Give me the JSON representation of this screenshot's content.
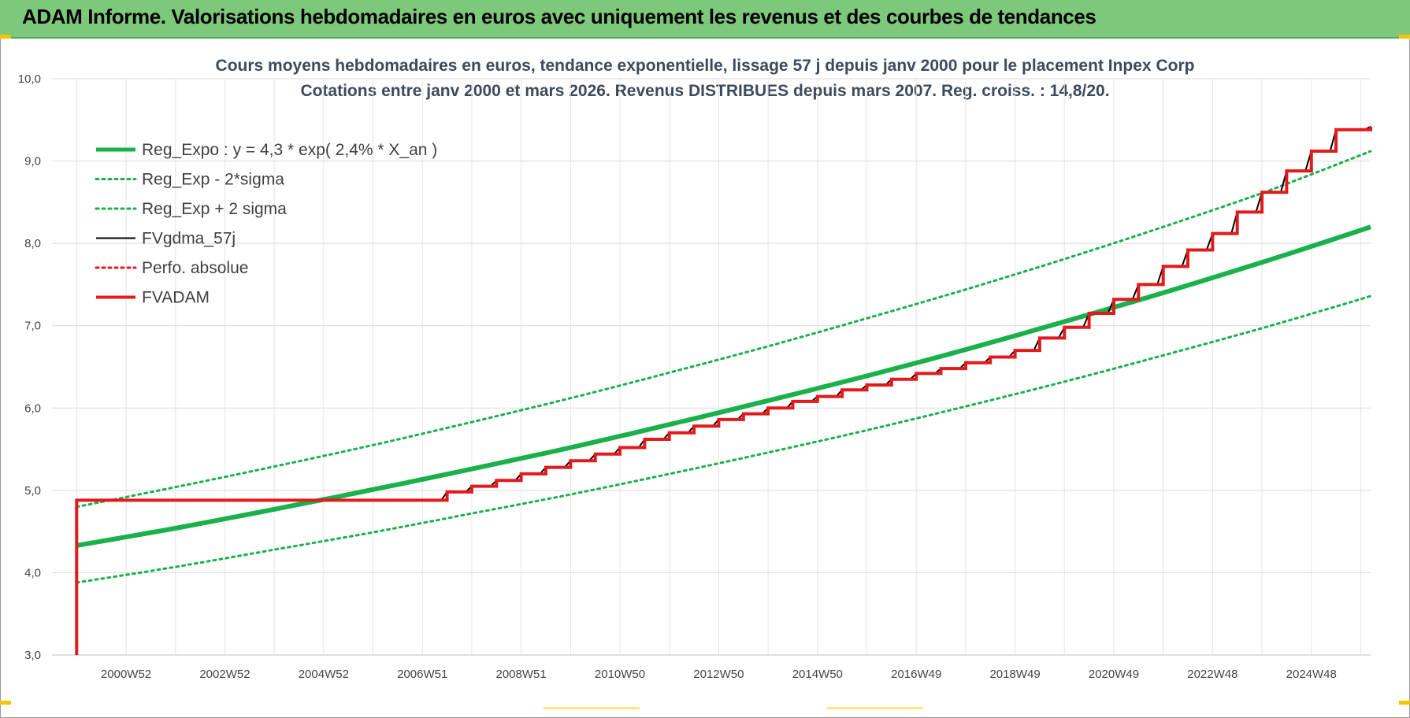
{
  "header": {
    "title": "ADAM Informe. Valorisations hebdomadaires en euros avec uniquement les revenus et des courbes de tendances"
  },
  "chart_data": {
    "type": "line",
    "title": "Cours moyens hebdomadaires en euros, tendance exponentielle, lissage 57 j depuis janv 2000  pour le placement Inpex Corp",
    "subtitle": "Cotations entre janv 2000 et mars 2026. Revenus DISTRIBUES depuis mars 2007. Reg. croiss. : 14,8/20.",
    "xlabel": "",
    "ylabel": "",
    "ylim": [
      3.0,
      10.0
    ],
    "xlim": [
      1999.5,
      2026.2
    ],
    "y_ticks": [
      "3,0",
      "4,0",
      "5,0",
      "6,0",
      "7,0",
      "8,0",
      "9,0",
      "10,0"
    ],
    "x_tick_labels": [
      "2000W52",
      "2002W52",
      "2004W52",
      "2006W51",
      "2008W51",
      "2010W50",
      "2012W50",
      "2014W50",
      "2016W49",
      "2018W49",
      "2020W49",
      "2022W48",
      "2024W48"
    ],
    "x_tick_years": [
      2001,
      2003,
      2005,
      2007,
      2009,
      2011,
      2013,
      2015,
      2017,
      2019,
      2021,
      2023,
      2025
    ],
    "grid": true,
    "legend_position": "top-left",
    "series": [
      {
        "name": "Reg_Expo : y = 4,3 * exp( 2,4% *  X_an )",
        "color": "#1ab04b",
        "style": "solid-thick",
        "x": [
          2000.0,
          2002.0,
          2004.0,
          2006.0,
          2008.0,
          2010.0,
          2012.0,
          2014.0,
          2016.0,
          2018.0,
          2020.0,
          2022.0,
          2024.0,
          2026.2
        ],
        "y": [
          4.33,
          4.54,
          4.77,
          5.01,
          5.26,
          5.52,
          5.8,
          6.09,
          6.39,
          6.71,
          7.05,
          7.4,
          7.77,
          8.2
        ]
      },
      {
        "name": "Reg_Exp - 2*sigma",
        "color": "#1ab04b",
        "style": "dotted",
        "x": [
          2000.0,
          2002.0,
          2004.0,
          2006.0,
          2008.0,
          2010.0,
          2012.0,
          2014.0,
          2016.0,
          2018.0,
          2020.0,
          2022.0,
          2024.0,
          2026.2
        ],
        "y": [
          3.88,
          4.07,
          4.28,
          4.49,
          4.72,
          4.95,
          5.2,
          5.46,
          5.73,
          6.02,
          6.32,
          6.64,
          6.97,
          7.36
        ]
      },
      {
        "name": "Reg_Exp + 2 sigma",
        "color": "#1ab04b",
        "style": "dotted",
        "x": [
          2000.0,
          2002.0,
          2004.0,
          2006.0,
          2008.0,
          2010.0,
          2012.0,
          2014.0,
          2016.0,
          2018.0,
          2020.0,
          2022.0,
          2024.0,
          2026.2
        ],
        "y": [
          4.8,
          5.04,
          5.29,
          5.55,
          5.83,
          6.12,
          6.43,
          6.75,
          7.09,
          7.44,
          7.81,
          8.2,
          8.61,
          9.12
        ]
      },
      {
        "name": "FVgdma_57j",
        "color": "#000000",
        "style": "solid-thin",
        "x": [
          2000.0,
          2000.0,
          2007.0,
          2007.5,
          2008.0,
          2008.5,
          2009.0,
          2009.5,
          2010.0,
          2010.5,
          2011.0,
          2011.5,
          2012.0,
          2012.5,
          2013.0,
          2013.5,
          2014.0,
          2014.5,
          2015.0,
          2015.5,
          2016.0,
          2016.5,
          2017.0,
          2017.5,
          2018.0,
          2018.5,
          2019.0,
          2019.5,
          2020.0,
          2020.5,
          2021.0,
          2021.5,
          2022.0,
          2022.5,
          2023.0,
          2023.5,
          2024.0,
          2024.5,
          2025.0,
          2025.5,
          2026.2
        ],
        "y": [
          3.0,
          4.88,
          4.88,
          4.98,
          5.05,
          5.12,
          5.2,
          5.28,
          5.36,
          5.44,
          5.52,
          5.62,
          5.7,
          5.78,
          5.86,
          5.93,
          6.0,
          6.08,
          6.14,
          6.22,
          6.28,
          6.35,
          6.42,
          6.48,
          6.55,
          6.62,
          6.7,
          6.85,
          6.98,
          7.15,
          7.32,
          7.5,
          7.72,
          7.92,
          8.12,
          8.38,
          8.62,
          8.88,
          9.12,
          9.38,
          9.42
        ]
      },
      {
        "name": "Perfo. absolue",
        "color": "#e31a1c",
        "style": "dotted",
        "x": [],
        "y": []
      },
      {
        "name": "FVADAM",
        "color": "#e31a1c",
        "style": "step-thick",
        "x": [
          2000.0,
          2000.0,
          2007.0,
          2007.5,
          2008.0,
          2008.5,
          2009.0,
          2009.5,
          2010.0,
          2010.5,
          2011.0,
          2011.5,
          2012.0,
          2012.5,
          2013.0,
          2013.5,
          2014.0,
          2014.5,
          2015.0,
          2015.5,
          2016.0,
          2016.5,
          2017.0,
          2017.5,
          2018.0,
          2018.5,
          2019.0,
          2019.5,
          2020.0,
          2020.5,
          2021.0,
          2021.5,
          2022.0,
          2022.5,
          2023.0,
          2023.5,
          2024.0,
          2024.5,
          2025.0,
          2025.5,
          2026.2
        ],
        "y": [
          3.0,
          4.88,
          4.88,
          4.98,
          5.05,
          5.12,
          5.2,
          5.28,
          5.36,
          5.44,
          5.52,
          5.62,
          5.7,
          5.78,
          5.86,
          5.93,
          6.0,
          6.08,
          6.14,
          6.22,
          6.28,
          6.35,
          6.42,
          6.48,
          6.55,
          6.62,
          6.7,
          6.85,
          6.98,
          7.15,
          7.32,
          7.5,
          7.72,
          7.92,
          8.12,
          8.38,
          8.62,
          8.88,
          9.12,
          9.38,
          9.42
        ]
      }
    ]
  }
}
